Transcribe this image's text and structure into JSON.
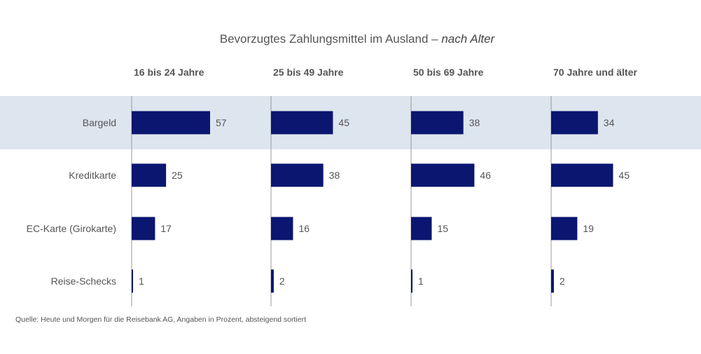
{
  "chart_data": {
    "type": "bar",
    "orientation": "horizontal",
    "title": "Bevorzugtes Zahlungsmittel im Ausland",
    "title_suffix": "nach Alter",
    "title_separator": " – ",
    "categories": [
      "Bargeld",
      "Kreditkarte",
      "EC-Karte (Girokarte)",
      "Reise-Schecks"
    ],
    "highlighted_category": "Bargeld",
    "series": [
      {
        "name": "16 bis 24 Jahre",
        "values": [
          57,
          25,
          17,
          1
        ]
      },
      {
        "name": "25 bis 49 Jahre",
        "values": [
          45,
          38,
          16,
          2
        ]
      },
      {
        "name": "50 bis 69 Jahre",
        "values": [
          38,
          46,
          15,
          1
        ]
      },
      {
        "name": "70 Jahre und älter",
        "values": [
          34,
          45,
          19,
          2
        ]
      }
    ],
    "xlim": [
      0,
      100
    ],
    "unit": "Prozent",
    "grid": false,
    "legend": "none",
    "colors": {
      "bar": "#0a1670",
      "highlight_band": "#dde5ee",
      "axis_line": "#999999",
      "text": "#555555"
    },
    "source": "Quelle: Heute und Morgen für die Reisebank AG, Angaben in Prozent, absteigend sortiert"
  }
}
